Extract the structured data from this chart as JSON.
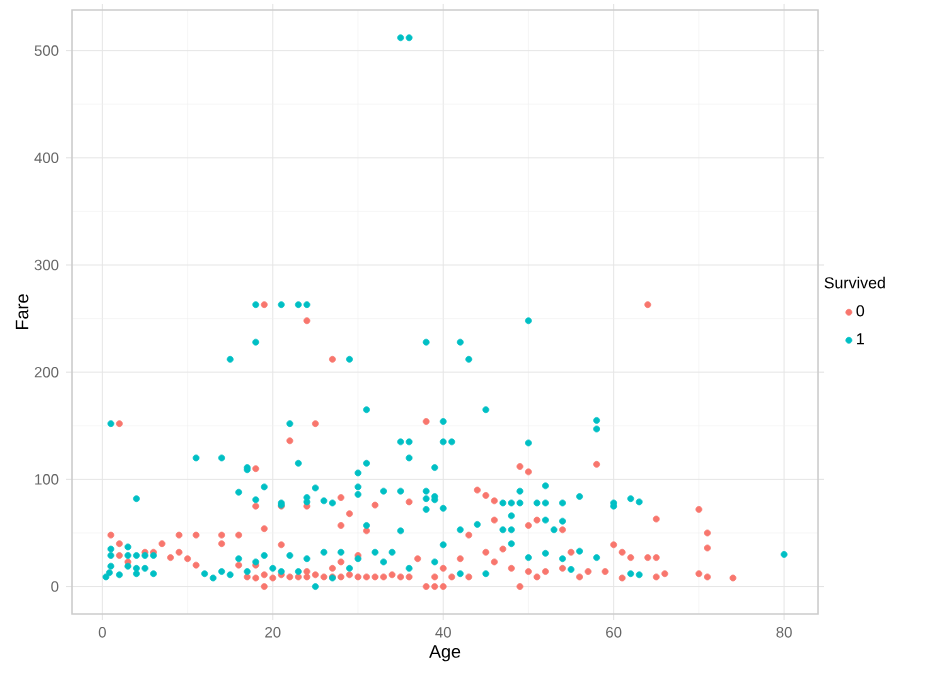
{
  "chart_data": {
    "type": "scatter",
    "xlabel": "Age",
    "ylabel": "Fare",
    "legend_title": "Survived",
    "xlim": [
      -3.56,
      83.98
    ],
    "ylim": [
      -25.6,
      537.9
    ],
    "xticks": [
      0,
      20,
      40,
      60,
      80
    ],
    "yticks": [
      0,
      100,
      200,
      300,
      400,
      500
    ],
    "grid": true,
    "legend": "right",
    "marker": "circle",
    "series": [
      {
        "name": "0",
        "color": "#f8766d",
        "x": [
          19,
          64,
          24,
          27,
          2,
          25,
          38,
          22,
          18,
          49,
          50,
          58,
          44,
          45,
          46,
          36,
          28,
          18,
          21,
          24,
          29,
          32,
          43,
          46,
          51,
          50,
          54,
          65,
          70,
          71,
          71,
          19,
          28,
          31,
          1,
          2,
          2,
          3,
          5,
          6,
          7,
          8,
          9,
          9,
          10,
          11,
          11,
          14,
          14,
          16,
          16,
          17,
          18,
          18,
          19,
          19,
          20,
          21,
          21,
          22,
          23,
          24,
          24,
          25,
          26,
          27,
          27,
          28,
          28,
          29,
          30,
          30,
          31,
          32,
          33,
          34,
          35,
          36,
          37,
          38,
          39,
          40,
          39,
          40,
          41,
          42,
          43,
          45,
          46,
          47,
          48,
          49,
          50,
          51,
          52,
          54,
          55,
          56,
          57,
          59,
          60,
          61,
          61,
          62,
          64,
          65,
          65,
          66,
          70,
          71,
          74
        ],
        "values": [
          263,
          263,
          248,
          212,
          152,
          152,
          154,
          136,
          110,
          112,
          107,
          114,
          90,
          85,
          80,
          79,
          83,
          75,
          75,
          75,
          68,
          76,
          48,
          62,
          62,
          57,
          53,
          63,
          72,
          50,
          36,
          54,
          57,
          52,
          48,
          40,
          29,
          23,
          32,
          32,
          40,
          27,
          48,
          32,
          26,
          48,
          20,
          48,
          40,
          48,
          20,
          9,
          8,
          20,
          0,
          11,
          8,
          11,
          39,
          9,
          9,
          14,
          9,
          11,
          9,
          17,
          9,
          9,
          23,
          11,
          9,
          29,
          9,
          9,
          9,
          11,
          9,
          9,
          26,
          0,
          0,
          0,
          9,
          17,
          9,
          26,
          9,
          32,
          23,
          35,
          17,
          0,
          14,
          9,
          14,
          17,
          32,
          9,
          14,
          14,
          39,
          32,
          8,
          27,
          27,
          9,
          27,
          12,
          12,
          9,
          8
        ]
      },
      {
        "name": "1",
        "color": "#00bfc4",
        "x": [
          35,
          36,
          18,
          21,
          23,
          24,
          18,
          38,
          42,
          15,
          29,
          43,
          50,
          1,
          22,
          40,
          31,
          45,
          58,
          58,
          35,
          36,
          40,
          41,
          50,
          11,
          14,
          36,
          23,
          31,
          17,
          17,
          39,
          30,
          4,
          16,
          18,
          19,
          21,
          21,
          24,
          24,
          25,
          26,
          27,
          30,
          30,
          33,
          35,
          38,
          38,
          38,
          39,
          39,
          40,
          42,
          44,
          47,
          48,
          49,
          49,
          48,
          51,
          52,
          52,
          52,
          54,
          54,
          56,
          60,
          60,
          62,
          63,
          53,
          47,
          48,
          0.42,
          0.83,
          1,
          1,
          1,
          2,
          3,
          3,
          3,
          4,
          4,
          4,
          5,
          5,
          6,
          6,
          12,
          13,
          14,
          15,
          16,
          17,
          18,
          19,
          20,
          21,
          22,
          23,
          24,
          25,
          26,
          27,
          28,
          29,
          30,
          31,
          32,
          33,
          34,
          35,
          36,
          39,
          40,
          42,
          45,
          48,
          50,
          52,
          54,
          55,
          56,
          58,
          62,
          63,
          80
        ],
        "values": [
          512,
          512,
          263,
          263,
          263,
          263,
          228,
          228,
          228,
          212,
          212,
          212,
          248,
          152,
          152,
          154,
          165,
          165,
          155,
          147,
          135,
          135,
          135,
          135,
          134,
          120,
          120,
          120,
          115,
          115,
          111,
          109,
          111,
          106,
          82,
          88,
          81,
          93,
          78,
          76,
          83,
          79,
          92,
          80,
          78,
          93,
          86,
          89,
          89,
          89,
          82,
          72,
          84,
          81,
          73,
          53,
          58,
          78,
          78,
          78,
          89,
          66,
          78,
          78,
          94,
          62,
          78,
          61,
          84,
          78,
          75,
          82,
          79,
          53,
          53,
          53,
          9,
          13,
          19,
          35,
          29,
          11,
          19,
          29,
          37,
          29,
          17,
          12,
          29,
          17,
          12,
          29,
          12,
          8,
          14,
          11,
          26,
          14,
          23,
          29,
          17,
          14,
          29,
          14,
          26,
          0,
          32,
          8,
          32,
          17,
          26,
          57,
          32,
          23,
          32,
          52,
          17,
          23,
          39,
          12,
          12,
          40,
          27,
          31,
          26,
          16,
          33,
          27,
          12,
          11,
          30
        ]
      }
    ]
  }
}
